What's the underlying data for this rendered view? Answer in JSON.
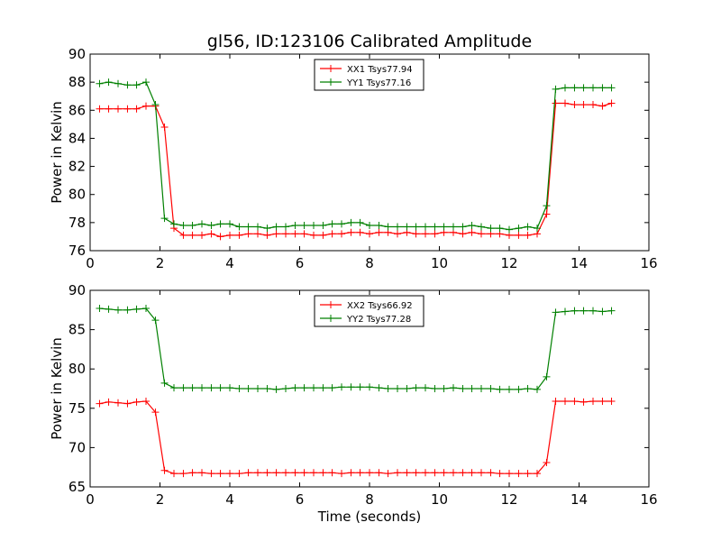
{
  "figure": {
    "title": "gl56, ID:123106 Calibrated Amplitude",
    "xlabel": "Time (seconds)"
  },
  "colors": {
    "XX": "#ff0000",
    "YY": "#008000"
  },
  "chart_data": [
    {
      "type": "line",
      "ylabel": "Power in Kelvin",
      "xlim": [
        0,
        16
      ],
      "ylim": [
        76,
        90
      ],
      "xticks": [
        "0",
        "2",
        "4",
        "6",
        "8",
        "10",
        "12",
        "14",
        "16"
      ],
      "yticks": [
        "76",
        "78",
        "80",
        "82",
        "84",
        "86",
        "88",
        "90"
      ],
      "legend": "top-center",
      "x": [
        0.27,
        0.53,
        0.8,
        1.07,
        1.33,
        1.6,
        1.87,
        2.13,
        2.4,
        2.67,
        2.93,
        3.2,
        3.47,
        3.73,
        4.0,
        4.27,
        4.53,
        4.8,
        5.07,
        5.33,
        5.6,
        5.87,
        6.13,
        6.4,
        6.67,
        6.93,
        7.2,
        7.47,
        7.73,
        8.0,
        8.27,
        8.53,
        8.8,
        9.07,
        9.33,
        9.6,
        9.87,
        10.13,
        10.4,
        10.67,
        10.93,
        11.2,
        11.47,
        11.73,
        12.0,
        12.27,
        12.53,
        12.8,
        13.07,
        13.33,
        13.6,
        13.87,
        14.13,
        14.4,
        14.67,
        14.93
      ],
      "series": [
        {
          "name": "XX1 Tsys77.94",
          "color_key": "XX",
          "values": [
            86.1,
            86.1,
            86.1,
            86.1,
            86.1,
            86.3,
            86.3,
            84.8,
            77.6,
            77.1,
            77.1,
            77.1,
            77.2,
            77.0,
            77.1,
            77.1,
            77.2,
            77.2,
            77.1,
            77.2,
            77.2,
            77.2,
            77.2,
            77.1,
            77.1,
            77.2,
            77.2,
            77.3,
            77.3,
            77.2,
            77.3,
            77.3,
            77.2,
            77.3,
            77.2,
            77.2,
            77.2,
            77.3,
            77.3,
            77.2,
            77.3,
            77.2,
            77.2,
            77.2,
            77.1,
            77.1,
            77.1,
            77.2,
            78.6,
            86.5,
            86.5,
            86.4,
            86.4,
            86.4,
            86.3,
            86.5
          ]
        },
        {
          "name": "YY1 Tsys77.16",
          "color_key": "YY",
          "values": [
            87.9,
            88.0,
            87.9,
            87.8,
            87.8,
            88.0,
            86.4,
            78.3,
            77.9,
            77.8,
            77.8,
            77.9,
            77.8,
            77.9,
            77.9,
            77.7,
            77.7,
            77.7,
            77.6,
            77.7,
            77.7,
            77.8,
            77.8,
            77.8,
            77.8,
            77.9,
            77.9,
            78.0,
            78.0,
            77.8,
            77.8,
            77.7,
            77.7,
            77.7,
            77.7,
            77.7,
            77.7,
            77.7,
            77.7,
            77.7,
            77.8,
            77.7,
            77.6,
            77.6,
            77.5,
            77.6,
            77.7,
            77.6,
            79.2,
            87.5,
            87.6,
            87.6,
            87.6,
            87.6,
            87.6,
            87.6
          ]
        }
      ]
    },
    {
      "type": "line",
      "ylabel": "Power in Kelvin",
      "xlim": [
        0,
        16
      ],
      "ylim": [
        65,
        90
      ],
      "xticks": [
        "0",
        "2",
        "4",
        "6",
        "8",
        "10",
        "12",
        "14",
        "16"
      ],
      "yticks": [
        "65",
        "70",
        "75",
        "80",
        "85",
        "90"
      ],
      "legend": "top-center",
      "x": [
        0.27,
        0.53,
        0.8,
        1.07,
        1.33,
        1.6,
        1.87,
        2.13,
        2.4,
        2.67,
        2.93,
        3.2,
        3.47,
        3.73,
        4.0,
        4.27,
        4.53,
        4.8,
        5.07,
        5.33,
        5.6,
        5.87,
        6.13,
        6.4,
        6.67,
        6.93,
        7.2,
        7.47,
        7.73,
        8.0,
        8.27,
        8.53,
        8.8,
        9.07,
        9.33,
        9.6,
        9.87,
        10.13,
        10.4,
        10.67,
        10.93,
        11.2,
        11.47,
        11.73,
        12.0,
        12.27,
        12.53,
        12.8,
        13.07,
        13.33,
        13.6,
        13.87,
        14.13,
        14.4,
        14.67,
        14.93
      ],
      "series": [
        {
          "name": "XX2 Tsys66.92",
          "color_key": "XX",
          "values": [
            75.6,
            75.8,
            75.7,
            75.6,
            75.8,
            75.9,
            74.5,
            67.1,
            66.7,
            66.7,
            66.8,
            66.8,
            66.7,
            66.7,
            66.7,
            66.7,
            66.8,
            66.8,
            66.8,
            66.8,
            66.8,
            66.8,
            66.8,
            66.8,
            66.8,
            66.8,
            66.7,
            66.8,
            66.8,
            66.8,
            66.8,
            66.7,
            66.8,
            66.8,
            66.8,
            66.8,
            66.8,
            66.8,
            66.8,
            66.8,
            66.8,
            66.8,
            66.8,
            66.7,
            66.7,
            66.7,
            66.7,
            66.7,
            68.1,
            75.9,
            75.9,
            75.9,
            75.8,
            75.9,
            75.9,
            75.9
          ]
        },
        {
          "name": "YY2 Tsys77.28",
          "color_key": "YY",
          "values": [
            87.7,
            87.6,
            87.5,
            87.5,
            87.6,
            87.7,
            86.2,
            78.2,
            77.6,
            77.6,
            77.6,
            77.6,
            77.6,
            77.6,
            77.6,
            77.5,
            77.5,
            77.5,
            77.5,
            77.4,
            77.5,
            77.6,
            77.6,
            77.6,
            77.6,
            77.6,
            77.7,
            77.7,
            77.7,
            77.7,
            77.6,
            77.5,
            77.5,
            77.5,
            77.6,
            77.6,
            77.5,
            77.5,
            77.6,
            77.5,
            77.5,
            77.5,
            77.5,
            77.4,
            77.4,
            77.4,
            77.5,
            77.4,
            79.0,
            87.2,
            87.3,
            87.4,
            87.4,
            87.4,
            87.3,
            87.4
          ]
        }
      ]
    }
  ]
}
